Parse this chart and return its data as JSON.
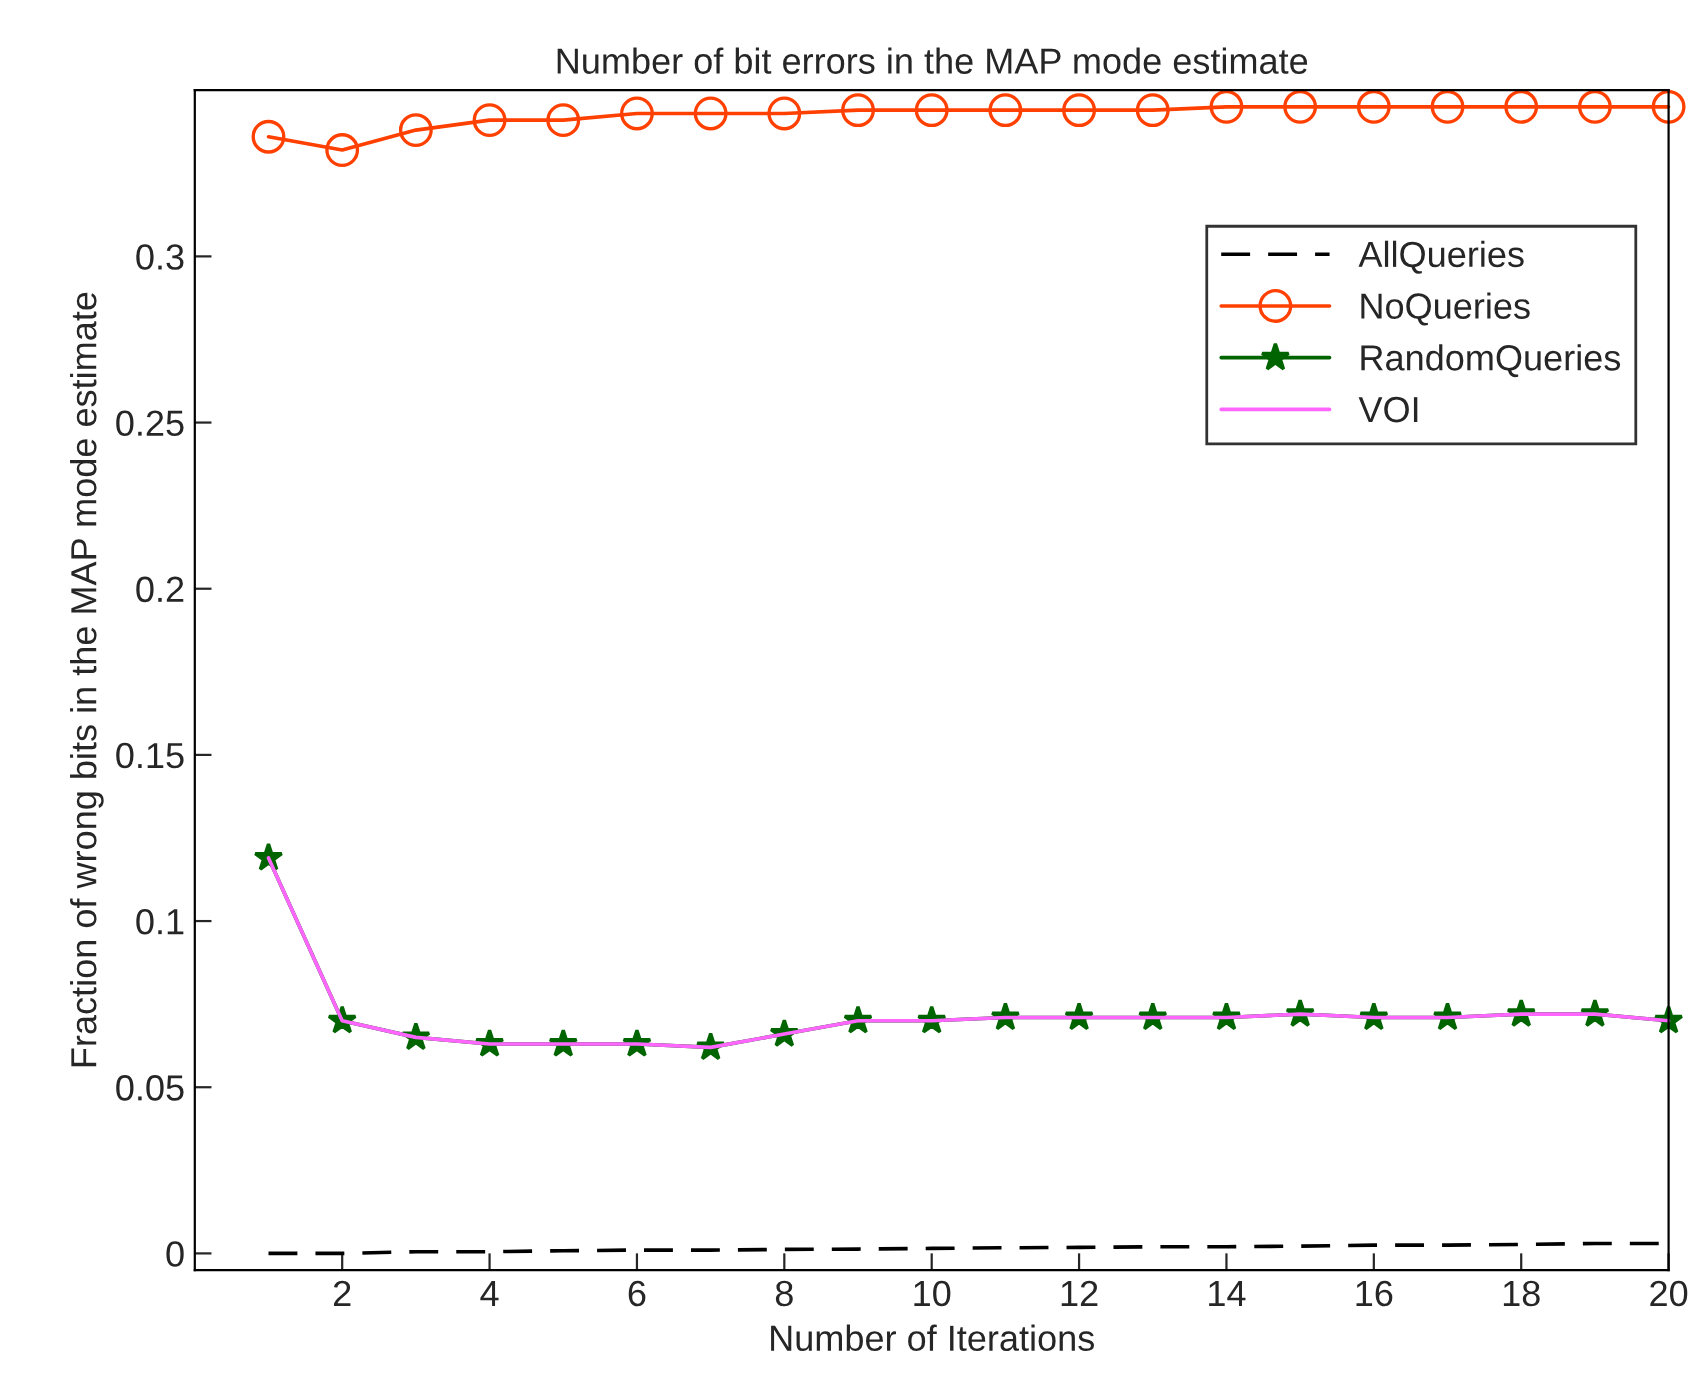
{
  "chart_data": {
    "type": "line",
    "title": "Number of bit errors in the MAP mode estimate",
    "xlabel": "Number of Iterations",
    "ylabel": "Fraction of wrong bits in the MAP mode estimate",
    "x": [
      1,
      2,
      3,
      4,
      5,
      6,
      7,
      8,
      9,
      10,
      11,
      12,
      13,
      14,
      15,
      16,
      17,
      18,
      19,
      20
    ],
    "series": [
      {
        "name": "AllQueries",
        "color": "#000000",
        "line_style": "dashed",
        "marker": "none",
        "values": [
          0.0,
          0.0,
          0.0005,
          0.0005,
          0.0008,
          0.001,
          0.001,
          0.0012,
          0.0013,
          0.0015,
          0.0017,
          0.0018,
          0.002,
          0.002,
          0.0022,
          0.0025,
          0.0025,
          0.0027,
          0.003,
          0.003
        ]
      },
      {
        "name": "NoQueries",
        "color": "#ff4000",
        "line_style": "solid",
        "marker": "circle",
        "values": [
          0.336,
          0.332,
          0.338,
          0.341,
          0.341,
          0.343,
          0.343,
          0.343,
          0.344,
          0.344,
          0.344,
          0.344,
          0.344,
          0.345,
          0.345,
          0.345,
          0.345,
          0.345,
          0.345,
          0.345
        ]
      },
      {
        "name": "RandomQueries",
        "color": "#006400",
        "line_style": "solid",
        "marker": "star",
        "values": [
          0.119,
          0.07,
          0.065,
          0.063,
          0.063,
          0.063,
          0.062,
          0.066,
          0.07,
          0.07,
          0.071,
          0.071,
          0.071,
          0.071,
          0.072,
          0.071,
          0.071,
          0.072,
          0.072,
          0.07
        ]
      },
      {
        "name": "VOI",
        "color": "#ff66ff",
        "line_style": "solid",
        "marker": "none",
        "values": [
          0.119,
          0.07,
          0.065,
          0.063,
          0.063,
          0.063,
          0.062,
          0.066,
          0.07,
          0.07,
          0.071,
          0.071,
          0.071,
          0.071,
          0.072,
          0.071,
          0.071,
          0.072,
          0.072,
          0.07
        ]
      }
    ],
    "xlim": [
      0,
      20
    ],
    "xticks": [
      2,
      4,
      6,
      8,
      10,
      12,
      14,
      16,
      18,
      20
    ],
    "ylim": [
      -0.005,
      0.35
    ],
    "yticks": [
      0,
      0.05,
      0.1,
      0.15,
      0.2,
      0.25,
      0.3
    ],
    "grid": false,
    "legend": "top right"
  }
}
